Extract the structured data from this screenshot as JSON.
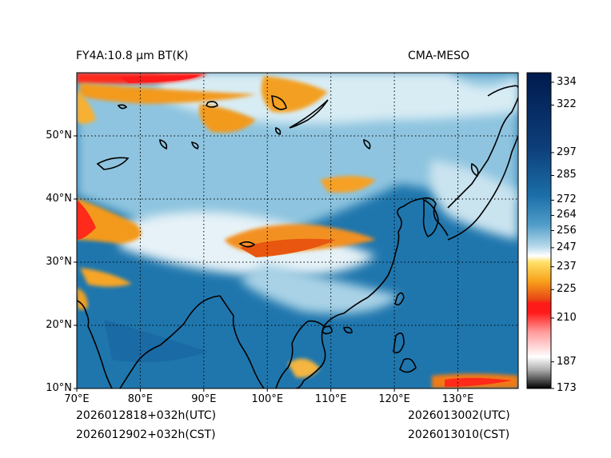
{
  "header": {
    "title_left": "FY4A:10.8 µm BT(K)",
    "title_right": "CMA-MESO"
  },
  "footer": {
    "init_utc": "2026012818+032h(UTC)",
    "init_cst": "2026012902+032h(CST)",
    "valid_utc": "2026013002(UTC)",
    "valid_cst": "2026013010(CST)"
  },
  "map": {
    "lon_labels": [
      "70°E",
      "80°E",
      "90°E",
      "100°E",
      "110°E",
      "120°E",
      "130°E"
    ],
    "lat_labels": [
      "50°N",
      "40°N",
      "30°N",
      "20°N",
      "10°N"
    ],
    "lon_values": [
      70,
      80,
      90,
      100,
      110,
      120,
      130
    ],
    "lat_values": [
      50,
      40,
      30,
      20,
      10
    ],
    "extent": {
      "lon_min": 70,
      "lon_max": 139.5,
      "lat_min": 10,
      "lat_max": 60
    }
  },
  "colorbar": {
    "tick_labels": [
      "334",
      "322",
      "297",
      "285",
      "272",
      "264",
      "256",
      "247",
      "237",
      "225",
      "210",
      "187",
      "173"
    ],
    "tick_values": [
      334,
      322,
      297,
      285,
      272,
      264,
      256,
      247,
      237,
      225,
      210,
      187,
      173
    ],
    "range": [
      173,
      339
    ],
    "colors": {
      "navy": "#001a4d",
      "blue": "#1b6fa8",
      "light_blue": "#8cc4e0",
      "white": "#ffffff",
      "yellow": "#ffd21f",
      "orange": "#ee7a16",
      "red": "#ff1a1a",
      "pink": "#ffd0d0",
      "black": "#000000"
    }
  }
}
